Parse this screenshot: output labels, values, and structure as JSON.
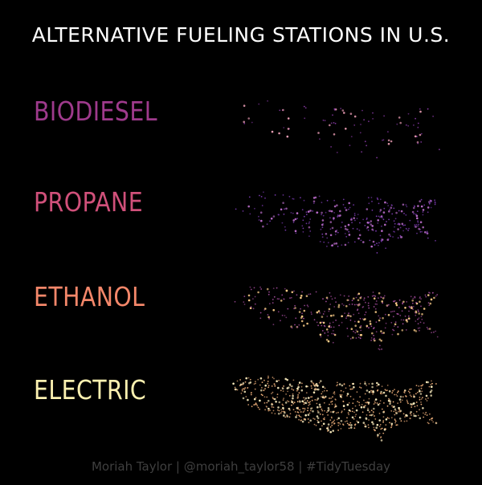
{
  "title": "ALTERNATIVE FUELING STATIONS IN U.S.",
  "credit": "Moriah Taylor | @moriah_taylor58 | #TidyTuesday",
  "fuels": [
    {
      "label": "BIODIESEL",
      "color": "#9e3a8c",
      "dot_color": "#8a3aa8",
      "hot_color": "#f0a0b8",
      "density": 0.12
    },
    {
      "label": "PROPANE",
      "color": "#d0507a",
      "dot_color": "#7a3ab0",
      "hot_color": "#c070d0",
      "density": 0.45
    },
    {
      "label": "ETHANOL",
      "color": "#f4876a",
      "dot_color": "#a04a9a",
      "hot_color": "#ffd08a",
      "density": 0.55
    },
    {
      "label": "ELECTRIC",
      "color": "#fbf0b0",
      "dot_color": "#f0b07a",
      "hot_color": "#fff0c0",
      "density": 1.0
    }
  ]
}
